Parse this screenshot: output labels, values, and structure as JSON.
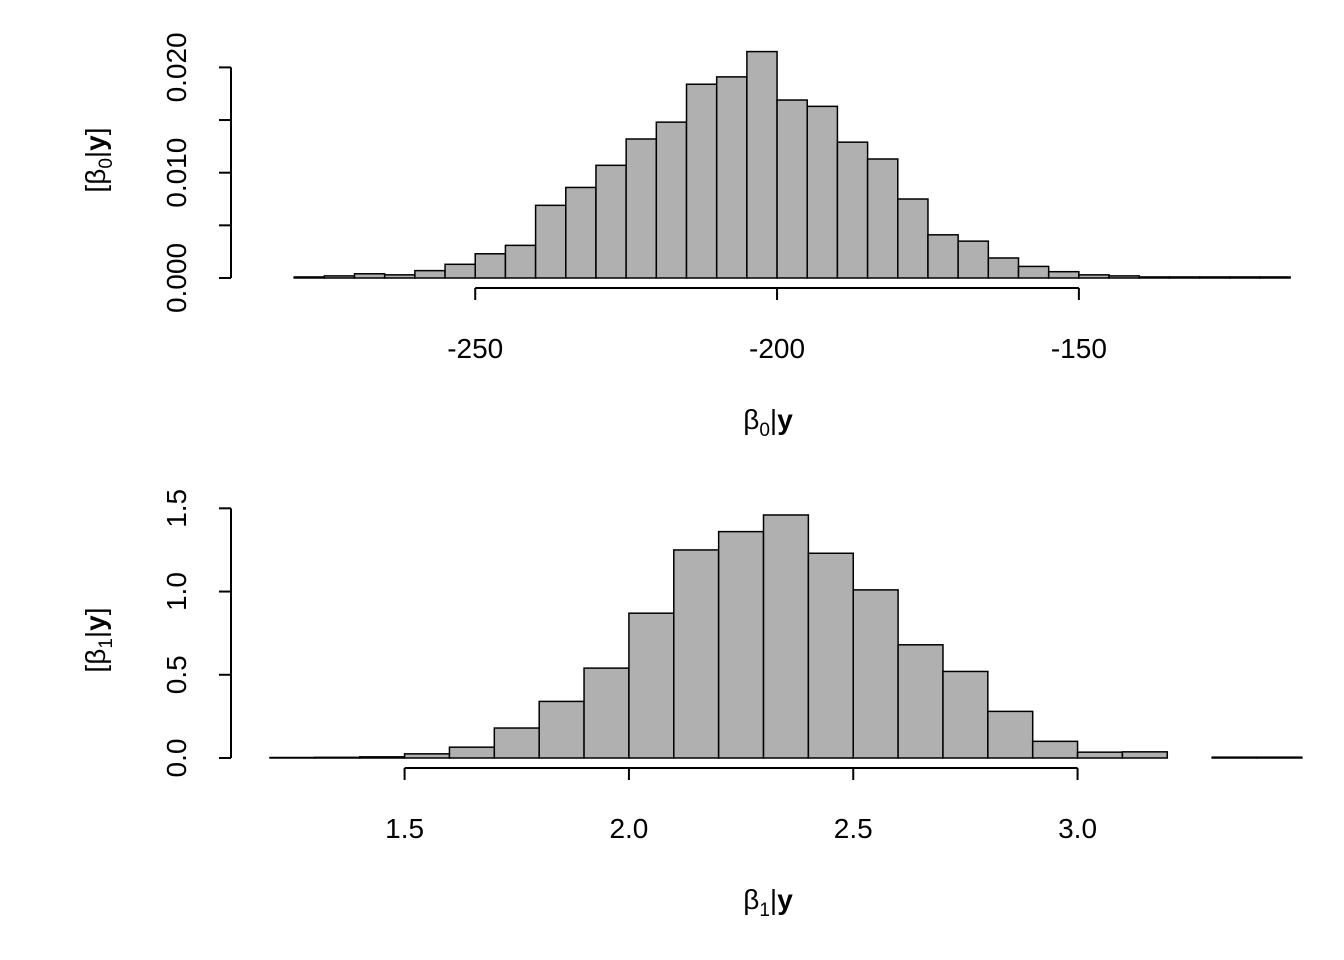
{
  "colors": {
    "bar_fill": "#b0b0b0",
    "bar_stroke": "#000000",
    "axis": "#000000",
    "background": "#ffffff"
  },
  "chart_data": [
    {
      "type": "bar",
      "subtype": "histogram",
      "xlabel": {
        "sym": "β",
        "sub": "0",
        "bar": "|",
        "bold": "y"
      },
      "ylabel": {
        "open": "[",
        "sym": "β",
        "sub": "0",
        "bar": "|",
        "bold": "y",
        "close": "]"
      },
      "xlim": [
        -284,
        -119
      ],
      "ylim": [
        0,
        0.0245
      ],
      "xticks": [
        -250,
        -200,
        -150
      ],
      "xtick_labels": [
        "-250",
        "-200",
        "-150"
      ],
      "yticks": [
        0,
        0.005,
        0.01,
        0.015,
        0.02
      ],
      "ytick_labels": [
        "0.000",
        "",
        "0.010",
        "",
        "0.020"
      ],
      "bin_width": 5,
      "bin_start": -280,
      "values": [
        0.0001,
        0.0002,
        0.0004,
        0.0003,
        0.0007,
        0.0013,
        0.0023,
        0.0031,
        0.0069,
        0.0086,
        0.0107,
        0.0132,
        0.0148,
        0.0184,
        0.0191,
        0.0215,
        0.0169,
        0.0163,
        0.0129,
        0.0113,
        0.0075,
        0.0041,
        0.0035,
        0.0019,
        0.0011,
        0.0006,
        0.0003,
        0.0002,
        0.0001,
        0.0001,
        0.0001,
        0.0001,
        0.0001
      ],
      "grid": false,
      "legend": "none"
    },
    {
      "type": "bar",
      "subtype": "histogram",
      "xlabel": {
        "sym": "β",
        "sub": "1",
        "bar": "|",
        "bold": "y"
      },
      "ylabel": {
        "open": "[",
        "sym": "β",
        "sub": "1",
        "bar": "|",
        "bold": "y",
        "close": "]"
      },
      "xlim": [
        1.2,
        3.42
      ],
      "ylim": [
        0,
        1.55
      ],
      "xticks": [
        1.5,
        2.0,
        2.5,
        3.0
      ],
      "xtick_labels": [
        "1.5",
        "2.0",
        "2.5",
        "3.0"
      ],
      "yticks": [
        0,
        0.5,
        1.0,
        1.5
      ],
      "ytick_labels": [
        "0.0",
        "0.5",
        "1.0",
        "1.5"
      ],
      "bin_width": 0.1,
      "bin_start": 1.2,
      "values": [
        0.003,
        0.004,
        0.007,
        0.025,
        0.065,
        0.18,
        0.34,
        0.54,
        0.87,
        1.25,
        1.36,
        1.46,
        1.23,
        1.01,
        0.68,
        0.52,
        0.28,
        0.1,
        0.035,
        0.037,
        0,
        0.005,
        0.005
      ],
      "grid": false,
      "legend": "none"
    }
  ]
}
